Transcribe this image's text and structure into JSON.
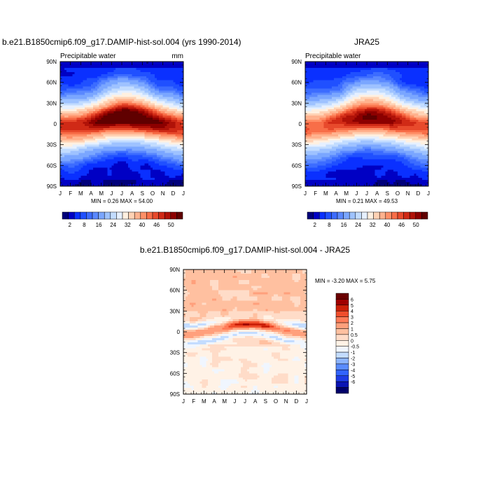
{
  "colors": {
    "abs_palette": [
      "#00007a",
      "#0000c4",
      "#0a30ff",
      "#2050ff",
      "#3c6cff",
      "#5a88ff",
      "#7aa6ff",
      "#9ec2ff",
      "#c2dcff",
      "#e6f0ff",
      "#fff0e0",
      "#ffd2b4",
      "#ffb28e",
      "#ff9068",
      "#f86e48",
      "#e84a2c",
      "#d02a16",
      "#b01208",
      "#8c0000",
      "#600000"
    ],
    "diff_palette": [
      "#00006a",
      "#0a14b4",
      "#1e3ce6",
      "#3264ff",
      "#5a8cff",
      "#8cb4ff",
      "#c3dcff",
      "#f0f6ff",
      "#fff2e6",
      "#ffdcc8",
      "#ffc0a0",
      "#ffa07c",
      "#ff7c58",
      "#f04e2c",
      "#cc2008",
      "#a00000",
      "#6a0000"
    ]
  },
  "chart_data": [
    {
      "type": "heatmap",
      "title": "b.e21.B1850cmip6.f09_g17.DAMIP-hist-sol.004 (yrs 1990-2014)",
      "subtitle_left": "Precipitable water",
      "subtitle_right": "mm",
      "x_ticks": [
        "J",
        "F",
        "M",
        "A",
        "M",
        "J",
        "J",
        "A",
        "S",
        "O",
        "N",
        "D",
        "J"
      ],
      "y_ticks": [
        "90N",
        "60N",
        "30N",
        "0",
        "30S",
        "60S",
        "90S"
      ],
      "stats": "MIN =   0.26 MAX =  54.00",
      "colorbar_labels": [
        "2",
        "8",
        "16",
        "24",
        "32",
        "40",
        "46",
        "50"
      ],
      "min": 0.26,
      "max": 54.0
    },
    {
      "type": "heatmap",
      "title": "JRA25",
      "subtitle_left": "Precipitable water",
      "x_ticks": [
        "J",
        "F",
        "M",
        "A",
        "M",
        "J",
        "J",
        "A",
        "S",
        "O",
        "N",
        "D",
        "J"
      ],
      "y_ticks": [
        "90N",
        "60N",
        "30N",
        "0",
        "30S",
        "60S",
        "90S"
      ],
      "stats": "MIN =   0.21 MAX =  49.53",
      "colorbar_labels": [
        "2",
        "8",
        "16",
        "24",
        "32",
        "40",
        "46",
        "50"
      ],
      "min": 0.21,
      "max": 49.53
    },
    {
      "type": "heatmap",
      "title": "b.e21.B1850cmip6.f09_g17.DAMIP-hist-sol.004 - JRA25",
      "x_ticks": [
        "J",
        "F",
        "M",
        "A",
        "M",
        "J",
        "J",
        "A",
        "S",
        "O",
        "N",
        "D",
        "J"
      ],
      "y_ticks": [
        "90N",
        "60N",
        "30N",
        "0",
        "30S",
        "60S",
        "90S"
      ],
      "stats": "MIN =  -3.20 MAX =    5.75",
      "colorbar_labels": [
        "6",
        "5",
        "4",
        "3",
        "2",
        "1",
        "0.5",
        "0",
        "-0.5",
        "-1",
        "-2",
        "-3",
        "-4",
        "-5",
        "-6"
      ],
      "min": -3.2,
      "max": 5.75
    }
  ]
}
